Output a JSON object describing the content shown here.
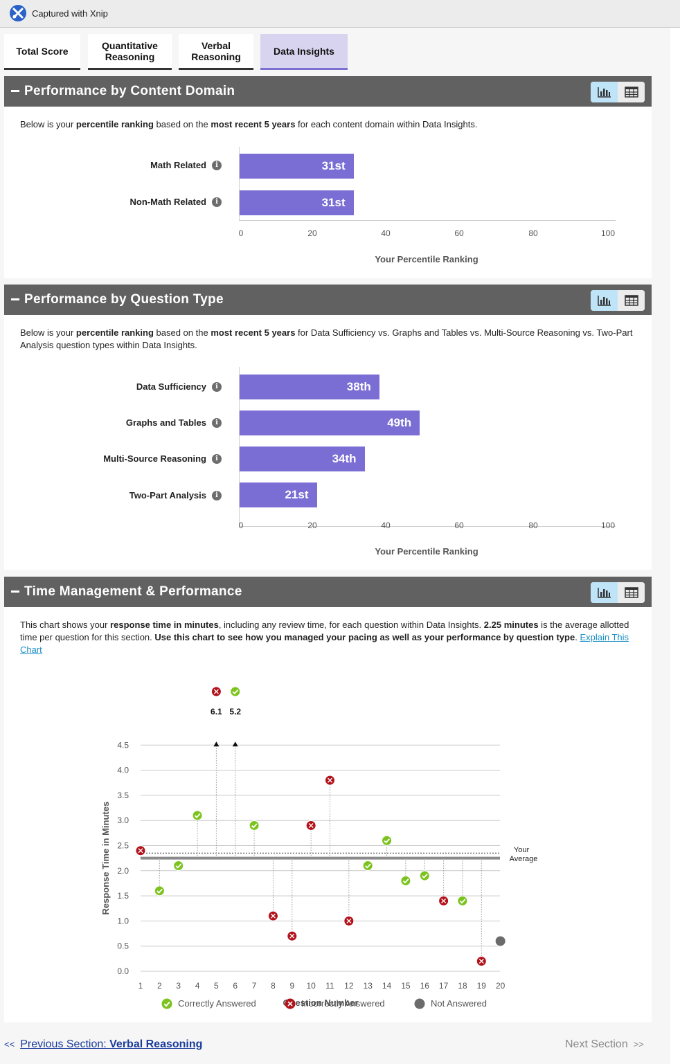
{
  "titlebar": {
    "text": "Captured with Xnip",
    "icon": "xnip-logo-icon"
  },
  "tabs": [
    {
      "label": "Total Score",
      "active": false
    },
    {
      "label": "Quantitative Reasoning",
      "active": false
    },
    {
      "label": "Verbal Reasoning",
      "active": false
    },
    {
      "label": "Data Insights",
      "active": true
    }
  ],
  "content_domain": {
    "title": "Performance by Content Domain",
    "desc": {
      "p1": "Below is your ",
      "b1": "percentile ranking",
      "p2": " based on the ",
      "b2": "most recent 5 years",
      "p3": " for each content domain within Data Insights."
    },
    "rows": [
      {
        "label": "Math Related",
        "value": 31,
        "value_label": "31st"
      },
      {
        "label": "Non-Math Related",
        "value": 31,
        "value_label": "31st"
      }
    ],
    "ticks": [
      "0",
      "20",
      "40",
      "60",
      "80",
      "100"
    ],
    "axis_title": "Your Percentile Ranking"
  },
  "question_type": {
    "title": "Performance by Question Type",
    "desc": {
      "p1": "Below is your ",
      "b1": "percentile ranking",
      "p2": " based on the ",
      "b2": "most recent 5 years",
      "p3": " for Data Sufficiency vs. Graphs and Tables vs. Multi-Source Reasoning vs. Two-Part Analysis question types within Data Insights."
    },
    "rows": [
      {
        "label": "Data Sufficiency",
        "value": 38,
        "value_label": "38th"
      },
      {
        "label": "Graphs and Tables",
        "value": 49,
        "value_label": "49th"
      },
      {
        "label": "Multi-Source Reasoning",
        "value": 34,
        "value_label": "34th"
      },
      {
        "label": "Two-Part Analysis",
        "value": 21,
        "value_label": "21st"
      }
    ],
    "ticks": [
      "0",
      "20",
      "40",
      "60",
      "80",
      "100"
    ],
    "axis_title": "Your Percentile Ranking"
  },
  "time_mgmt": {
    "title": "Time Management & Performance",
    "desc": {
      "p1": "This chart shows your ",
      "b1": "response time in minutes",
      "p2": ", including any review time, for each question within Data Insights. ",
      "b2": "2.25 minutes",
      "p3": " is the average allotted time per question for this section. ",
      "b3": "Use this chart to see how you managed your pacing as well as your performance by question type",
      "p4": ". ",
      "link": "Explain This Chart"
    },
    "legend": {
      "correct": "Correctly Answered",
      "incorrect": "Incorrectly Answered",
      "not_answered": "Not Answered"
    }
  },
  "chart_data": {
    "type": "scatter",
    "title": "",
    "xlabel": "Question Number",
    "ylabel": "Response Time in Minutes",
    "xlim": [
      1,
      20
    ],
    "ylim": [
      0,
      4.5
    ],
    "yticks": [
      "0.0",
      "0.5",
      "1.0",
      "1.5",
      "2.0",
      "2.5",
      "3.0",
      "3.5",
      "4.0",
      "4.5"
    ],
    "xticks": [
      "1",
      "2",
      "3",
      "4",
      "5",
      "6",
      "7",
      "8",
      "9",
      "10",
      "11",
      "12",
      "13",
      "14",
      "15",
      "16",
      "17",
      "18",
      "19",
      "20"
    ],
    "allotted_time": 2.25,
    "your_average": 2.35,
    "average_label_line1": "Your",
    "average_label_line2": "Average",
    "points": [
      {
        "q": 1,
        "time": 2.4,
        "status": "incorrect"
      },
      {
        "q": 2,
        "time": 1.6,
        "status": "correct"
      },
      {
        "q": 3,
        "time": 2.1,
        "status": "correct"
      },
      {
        "q": 4,
        "time": 3.1,
        "status": "correct"
      },
      {
        "q": 5,
        "time": 6.1,
        "status": "incorrect",
        "label": "6.1"
      },
      {
        "q": 6,
        "time": 5.2,
        "status": "correct",
        "label": "5.2"
      },
      {
        "q": 7,
        "time": 2.9,
        "status": "correct"
      },
      {
        "q": 8,
        "time": 1.1,
        "status": "incorrect"
      },
      {
        "q": 9,
        "time": 0.7,
        "status": "incorrect"
      },
      {
        "q": 10,
        "time": 2.9,
        "status": "incorrect"
      },
      {
        "q": 11,
        "time": 3.8,
        "status": "incorrect"
      },
      {
        "q": 12,
        "time": 1.0,
        "status": "incorrect"
      },
      {
        "q": 13,
        "time": 2.1,
        "status": "correct"
      },
      {
        "q": 14,
        "time": 2.6,
        "status": "correct"
      },
      {
        "q": 15,
        "time": 1.8,
        "status": "correct"
      },
      {
        "q": 16,
        "time": 1.9,
        "status": "correct"
      },
      {
        "q": 17,
        "time": 1.4,
        "status": "incorrect"
      },
      {
        "q": 18,
        "time": 1.4,
        "status": "correct"
      },
      {
        "q": 19,
        "time": 0.2,
        "status": "incorrect"
      },
      {
        "q": 20,
        "time": 0.6,
        "status": "not_answered"
      }
    ]
  },
  "colors": {
    "bar": "#7a6ed4",
    "correct": "#7cc31f",
    "incorrect": "#b3121b",
    "not_answered": "#6b6b6b",
    "header": "#616161"
  },
  "footer": {
    "prev_prefix": "Previous Section: ",
    "prev_section": "Verbal Reasoning",
    "next_label": "Next Section"
  }
}
